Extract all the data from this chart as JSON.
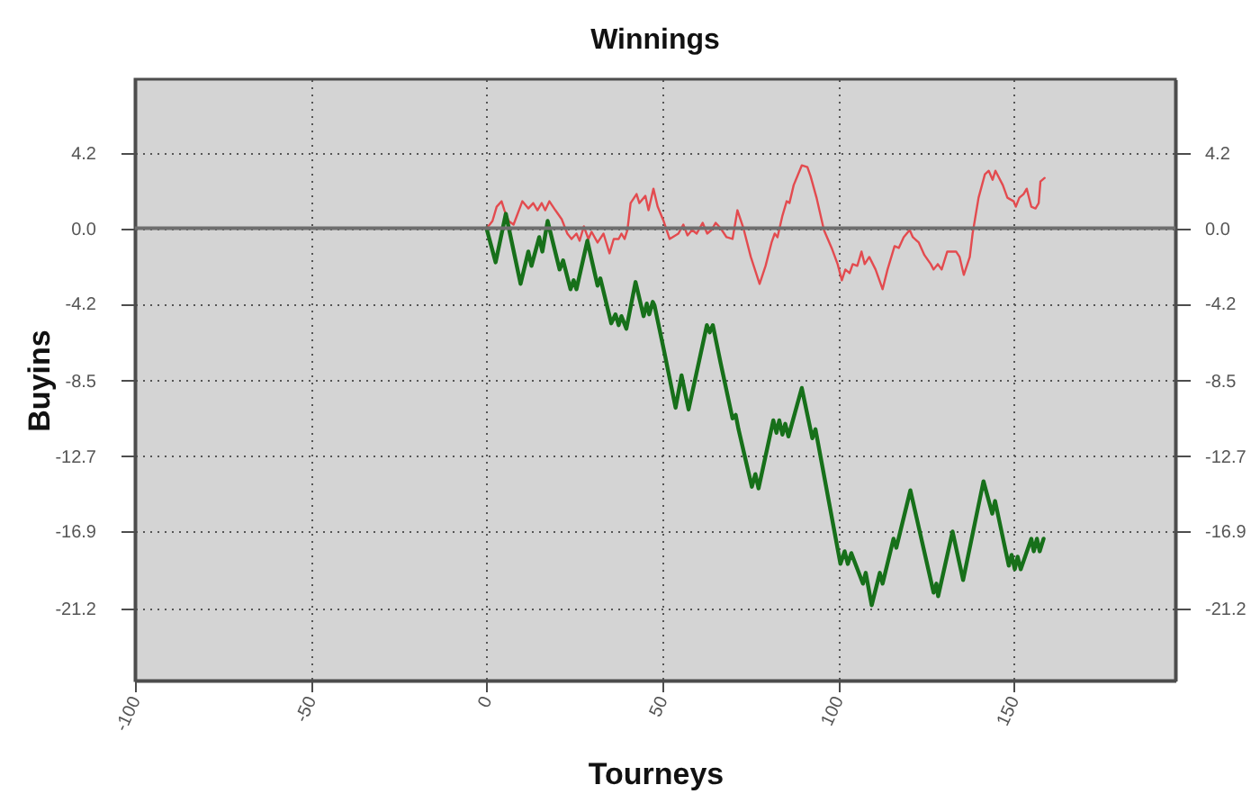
{
  "chart_data": {
    "type": "line",
    "title": "Winnings",
    "xlabel": "Tourneys",
    "ylabel": "Buyins",
    "xlim": [
      -100,
      196
    ],
    "xticks": [
      -100,
      -50,
      0,
      50,
      100,
      150
    ],
    "ylim": [
      -25.2,
      8.3
    ],
    "yticks": [
      4.2,
      {
        "value": 0,
        "label": "0.0"
      },
      -4.2,
      -8.5,
      -12.7,
      -16.9,
      -21.2
    ],
    "y2lim": [
      -25.2,
      8.3
    ],
    "y2ticks": [
      4.2,
      {
        "value": 0,
        "label": "0.0"
      },
      -4.2,
      -8.5,
      -12.7,
      -16.9,
      -21.2
    ],
    "grid": true,
    "ref_lines": [
      {
        "axis": "y",
        "value": 0,
        "color": "#6e6e6e"
      }
    ],
    "series": [
      {
        "color": "#e34b4f",
        "x": [
          0,
          0.9,
          1.7,
          2.9,
          4.3,
          5.1,
          6.3,
          7.7,
          10.2,
          11.9,
          13.3,
          14.5,
          15.7,
          16.7,
          17.9,
          19.6,
          21.4,
          23,
          24.2,
          25.6,
          26.5,
          27.7,
          29,
          29.9,
          31.6,
          33.3,
          35,
          36.2,
          37.6,
          38.4,
          39.3,
          40.1,
          41,
          42.7,
          43.5,
          45.2,
          46.1,
          47.5,
          48.7,
          50.4,
          52.1,
          54.6,
          56,
          57.2,
          58.5,
          59.8,
          61.5,
          62.8,
          64,
          65.2,
          66.6,
          68.3,
          70,
          71.4,
          73.1,
          75.2,
          77.7,
          79.4,
          81.1,
          82,
          82.8,
          84.2,
          85.4,
          86.2,
          87.4,
          89.7,
          91.3,
          92.2,
          93.9,
          96,
          98.2,
          99.9,
          101.1,
          102.1,
          103.3,
          104.2,
          105.5,
          106.7,
          107.6,
          108.9,
          110.7,
          112.7,
          114.1,
          116.1,
          117.3,
          118.7,
          120.4,
          121.3,
          123,
          124.6,
          126.4,
          127.2,
          128.4,
          129.5,
          131.1,
          133.6,
          134.6,
          135.8,
          137.5,
          138.3,
          140,
          141.8,
          142.9,
          144,
          144.8,
          146.9,
          148.2,
          150,
          150.6,
          151.6,
          152.8,
          153.7,
          155,
          156.2,
          157.1,
          157.6,
          158.8
        ],
        "values": [
          0,
          0.2,
          0.4,
          1.2,
          1.5,
          1.0,
          0.4,
          0.2,
          1.5,
          1.1,
          1.4,
          1.0,
          1.4,
          1.0,
          1.5,
          1.0,
          0.5,
          -0.3,
          -0.6,
          -0.3,
          -0.7,
          0.1,
          -0.6,
          -0.2,
          -0.8,
          -0.3,
          -1.4,
          -0.6,
          -0.6,
          -0.3,
          -0.6,
          -0.1,
          1.4,
          1.9,
          1.4,
          1.8,
          1.0,
          2.2,
          1.2,
          0.4,
          -0.6,
          -0.3,
          0.2,
          -0.4,
          -0.1,
          -0.3,
          0.3,
          -0.3,
          -0.1,
          0.3,
          0.0,
          -0.5,
          -0.6,
          1.0,
          0.0,
          -1.6,
          -3.1,
          -2.1,
          -0.8,
          -0.3,
          -0.5,
          0.7,
          1.5,
          1.4,
          2.4,
          3.5,
          3.4,
          2.9,
          1.7,
          -0.1,
          -1.1,
          -2.0,
          -2.9,
          -2.3,
          -2.5,
          -2.0,
          -2.1,
          -1.3,
          -2.0,
          -1.6,
          -2.3,
          -3.4,
          -2.3,
          -1.0,
          -1.1,
          -0.5,
          -0.1,
          -0.5,
          -0.8,
          -1.5,
          -2.0,
          -2.3,
          -2.0,
          -2.3,
          -1.3,
          -1.3,
          -1.6,
          -2.6,
          -1.6,
          -0.3,
          1.7,
          3.0,
          3.2,
          2.7,
          3.2,
          2.4,
          1.7,
          1.5,
          1.2,
          1.7,
          1.9,
          2.2,
          1.2,
          1.1,
          1.4,
          2.6,
          2.8
        ]
      },
      {
        "color": "#17701a",
        "x": [
          0,
          2.6,
          5.5,
          9.7,
          11.9,
          12.8,
          15,
          15.9,
          17.4,
          20.8,
          21.8,
          23.9,
          24.8,
          25.6,
          28.7,
          31.6,
          32.4,
          35.5,
          36.7,
          37.6,
          38.4,
          39.8,
          42.4,
          44.7,
          45.6,
          46.3,
          47.3,
          47.8,
          50.7,
          53.8,
          55.5,
          57.5,
          62.7,
          63.5,
          64.4,
          66.6,
          70,
          70.9,
          71.7,
          75.5,
          76.5,
          77.4,
          81.6,
          82.5,
          83.3,
          84.2,
          85,
          85.9,
          89.7,
          92.7,
          93.6,
          100.7,
          101.9,
          102.8,
          103.8,
          107.1,
          107.9,
          109.6,
          111.9,
          112.7,
          115.8,
          116.6,
          120.6,
          127.2,
          128,
          128.5,
          132.6,
          135.6,
          141.4,
          143.9,
          144.7,
          148.6,
          149.4,
          150.3,
          151.1,
          152,
          155,
          155.7,
          156.6,
          157.4,
          158.5
        ],
        "values": [
          0,
          -1.9,
          0.8,
          -3.1,
          -1.3,
          -2.1,
          -0.5,
          -1.3,
          0.4,
          -2.3,
          -1.8,
          -3.4,
          -2.9,
          -3.4,
          -0.7,
          -3.2,
          -2.8,
          -5.3,
          -4.8,
          -5.4,
          -4.9,
          -5.6,
          -3.0,
          -4.9,
          -4.2,
          -4.8,
          -4.1,
          -4.3,
          -7.0,
          -10.0,
          -8.2,
          -10.1,
          -5.4,
          -5.8,
          -5.4,
          -7.5,
          -10.6,
          -10.4,
          -11.2,
          -14.4,
          -13.7,
          -14.5,
          -10.7,
          -11.4,
          -10.7,
          -11.5,
          -10.9,
          -11.6,
          -8.9,
          -11.7,
          -11.2,
          -18.7,
          -18.0,
          -18.7,
          -18.1,
          -19.8,
          -19.2,
          -21.0,
          -19.2,
          -19.8,
          -17.3,
          -17.8,
          -14.6,
          -20.3,
          -19.8,
          -20.5,
          -16.9,
          -19.6,
          -14.1,
          -15.9,
          -15.2,
          -18.8,
          -18.2,
          -19.0,
          -18.3,
          -19.0,
          -17.3,
          -18.0,
          -17.3,
          -18.0,
          -17.3
        ]
      }
    ]
  }
}
